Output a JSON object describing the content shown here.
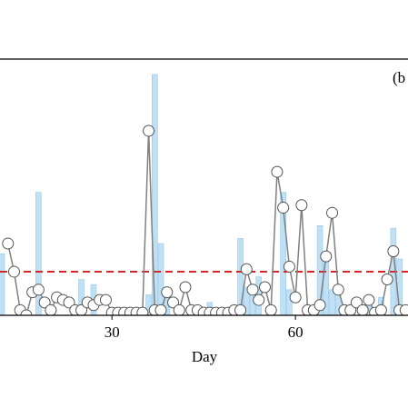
{
  "chart_data": {
    "type": "bar-line",
    "panel_label": "(b",
    "x_label": "Day",
    "xlim": [
      11.7,
      78.4
    ],
    "xticks": [
      30,
      60
    ],
    "ylim": [
      0,
      10
    ],
    "threshold": 1.7,
    "threshold_color": "#d62728",
    "series": [
      {
        "kind": "bar",
        "color": "#bfe0f5",
        "x": [
          12,
          18,
          25,
          27,
          36,
          37,
          38,
          39,
          46,
          51,
          52,
          53,
          54,
          58,
          59,
          64,
          65,
          66,
          67,
          72,
          74,
          76,
          77
        ],
        "values": [
          2.4,
          4.8,
          1.4,
          1.2,
          0.8,
          9.4,
          2.8,
          1.1,
          0.5,
          3.0,
          1.1,
          1.1,
          1.5,
          4.8,
          1.0,
          3.5,
          2.3,
          1.0,
          1.1,
          0.8,
          0.7,
          3.4,
          2.2
        ]
      },
      {
        "kind": "line",
        "color": "#808080",
        "x": [
          13,
          14,
          15,
          16,
          17,
          18,
          19,
          20,
          21,
          22,
          23,
          24,
          25,
          26,
          27,
          28,
          29,
          30,
          31,
          32,
          33,
          34,
          35,
          36,
          37,
          38,
          39,
          40,
          41,
          42,
          43,
          44,
          45,
          46,
          47,
          48,
          49,
          50,
          51,
          52,
          53,
          54,
          55,
          56,
          57,
          58,
          59,
          60,
          61,
          62,
          63,
          64,
          65,
          66,
          67,
          68,
          69,
          70,
          71,
          72,
          73,
          74,
          75,
          76,
          77,
          78
        ],
        "values": [
          2.8,
          1.7,
          0.2,
          0.0,
          0.9,
          1.0,
          0.5,
          0.2,
          0.7,
          0.6,
          0.5,
          0.2,
          0.2,
          0.5,
          0.4,
          0.6,
          0.6,
          0.1,
          0.1,
          0.1,
          0.1,
          0.1,
          0.1,
          7.2,
          0.2,
          0.2,
          0.9,
          0.5,
          0.2,
          1.1,
          0.2,
          0.2,
          0.1,
          0.1,
          0.1,
          0.1,
          0.1,
          0.2,
          0.2,
          1.8,
          1.0,
          0.6,
          1.1,
          0.2,
          5.6,
          4.2,
          1.9,
          0.7,
          4.3,
          0.2,
          0.2,
          0.4,
          2.3,
          4.0,
          1.0,
          0.2,
          0.2,
          0.5,
          0.2,
          0.6,
          0.1,
          0.2,
          1.4,
          2.5,
          0.2,
          0.2
        ]
      }
    ]
  }
}
